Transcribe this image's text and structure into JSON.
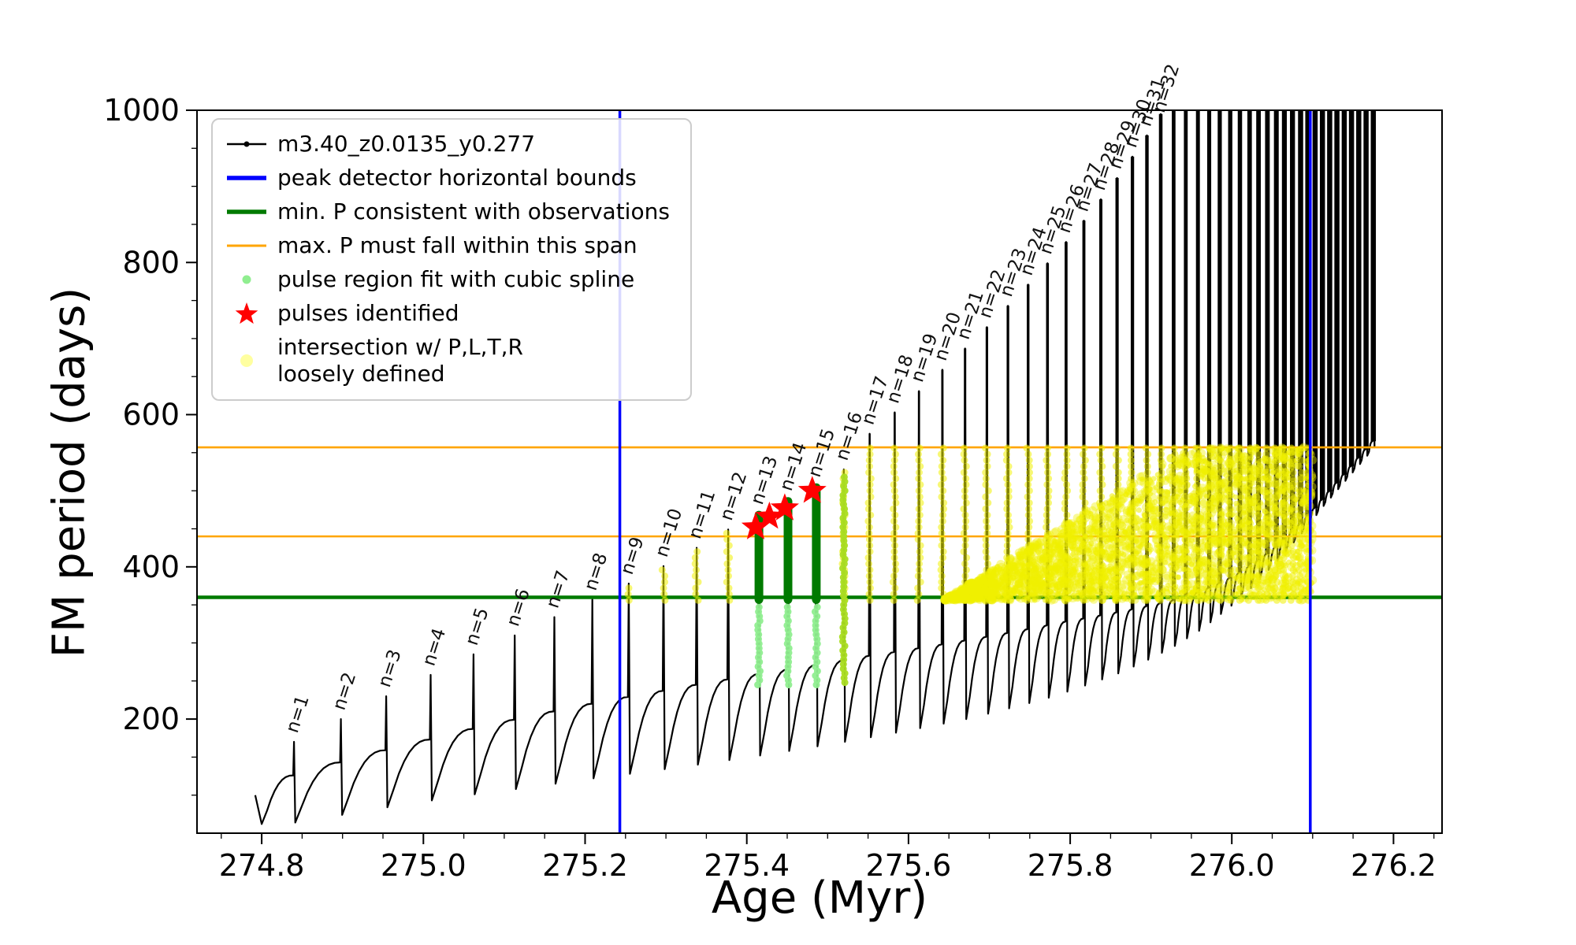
{
  "chart_data": {
    "type": "line",
    "title": "",
    "xlabel": "Age (Myr)",
    "ylabel": "FM period (days)",
    "xlim": [
      274.72,
      276.26
    ],
    "ylim": [
      50,
      1000
    ],
    "xticks": [
      274.8,
      275.0,
      275.2,
      275.4,
      275.6,
      275.8,
      276.0,
      276.2
    ],
    "yticks": [
      200,
      400,
      600,
      800,
      1000
    ],
    "series_name": "m3.40_z0.0135_y0.277",
    "pulse_label_prefix": "n=",
    "colors": {
      "series": "#000000",
      "bounds": "#0000ff",
      "min_p": "#007a00",
      "max_p": "#ffa500",
      "spline": "#90ee90",
      "pulses": "#ff0000",
      "intersection": "#f0f000",
      "greenyellow": "#aadd22"
    },
    "legend": [
      {
        "marker": "line-dot",
        "color": "#000000",
        "label": "m3.40_z0.0135_y0.277"
      },
      {
        "marker": "thick-line",
        "color": "#0000ff",
        "label": "peak detector horizontal bounds"
      },
      {
        "marker": "thick-line",
        "color": "#007a00",
        "label": "min. P consistent with observations"
      },
      {
        "marker": "line",
        "color": "#ffa500",
        "label": "max. P must fall within this span"
      },
      {
        "marker": "dot",
        "color": "#90ee90",
        "size": 5.5,
        "label": "pulse region fit with cubic spline"
      },
      {
        "marker": "star",
        "color": "#ff0000",
        "label": "pulses identified"
      },
      {
        "marker": "dot",
        "color": "#ffffa0",
        "size": 8,
        "label": "intersection w/ P,L,T,R\nloosely defined"
      }
    ],
    "vlines": [
      275.243,
      276.097
    ],
    "hlines": {
      "min_p": 360,
      "max_p": [
        440,
        557
      ]
    },
    "curve_start": [
      274.792,
      100,
      274.8,
      62
    ],
    "pulses": [
      [
        274.84,
        170,
        126,
        64,
        1
      ],
      [
        274.898,
        200,
        143,
        74,
        2
      ],
      [
        274.954,
        230,
        159,
        84,
        3
      ],
      [
        275.009,
        258,
        173,
        93,
        4
      ],
      [
        275.062,
        285,
        187,
        101,
        5
      ],
      [
        275.113,
        310,
        199,
        108,
        6
      ],
      [
        275.162,
        334,
        210,
        115,
        7
      ],
      [
        275.209,
        357,
        220,
        122,
        8
      ],
      [
        275.254,
        378,
        229,
        128,
        9
      ],
      [
        275.297,
        401,
        237,
        134,
        10
      ],
      [
        275.338,
        425,
        245,
        140,
        11
      ],
      [
        275.377,
        449,
        252,
        146,
        12
      ],
      [
        275.415,
        470,
        259,
        152,
        13
      ],
      [
        275.451,
        488,
        265,
        158,
        14
      ],
      [
        275.486,
        506,
        271,
        164,
        15
      ],
      [
        275.52,
        528,
        277,
        170,
        16
      ],
      [
        275.552,
        575,
        283,
        176,
        17
      ],
      [
        275.583,
        603,
        288,
        182,
        18
      ],
      [
        275.613,
        631,
        293,
        188,
        19
      ],
      [
        275.642,
        659,
        298,
        194,
        20
      ],
      [
        275.67,
        687,
        303,
        200,
        21
      ],
      [
        275.697,
        715,
        308,
        207,
        22
      ],
      [
        275.723,
        743,
        313,
        214,
        23
      ],
      [
        275.748,
        771,
        318,
        221,
        24
      ],
      [
        275.772,
        799,
        323,
        228,
        25
      ],
      [
        275.795,
        827,
        328,
        236,
        26
      ],
      [
        275.817,
        855,
        332,
        244,
        27
      ],
      [
        275.838,
        883,
        336,
        252,
        28
      ],
      [
        275.858,
        911,
        340,
        260,
        29
      ],
      [
        275.877,
        939,
        344,
        269,
        30
      ],
      [
        275.895,
        967,
        348,
        278,
        31
      ],
      [
        275.912,
        995,
        352,
        287,
        32
      ],
      [
        275.928,
        1100,
        356,
        296,
        0
      ],
      [
        275.943,
        1100,
        361,
        306,
        0
      ],
      [
        275.958,
        1100,
        366,
        316,
        0
      ],
      [
        275.972,
        1100,
        372,
        327,
        0
      ],
      [
        275.985,
        1100,
        378,
        338,
        0
      ],
      [
        275.998,
        1100,
        385,
        349,
        0
      ],
      [
        276.01,
        1100,
        392,
        360,
        0
      ],
      [
        276.022,
        1100,
        400,
        372,
        0
      ],
      [
        276.033,
        1100,
        408,
        384,
        0
      ],
      [
        276.044,
        1100,
        417,
        396,
        0
      ],
      [
        276.055,
        1100,
        426,
        408,
        0
      ],
      [
        276.065,
        1100,
        436,
        420,
        0
      ],
      [
        276.075,
        1100,
        446,
        432,
        0
      ],
      [
        276.085,
        1100,
        456,
        444,
        0
      ],
      [
        276.094,
        1100,
        466,
        456,
        0
      ],
      [
        276.103,
        1100,
        477,
        468,
        0
      ],
      [
        276.112,
        1100,
        488,
        480,
        0
      ],
      [
        276.121,
        1100,
        499,
        491,
        0
      ],
      [
        276.13,
        1100,
        510,
        502,
        0
      ],
      [
        276.139,
        1100,
        521,
        513,
        0
      ],
      [
        276.148,
        1100,
        532,
        524,
        0
      ],
      [
        276.157,
        1100,
        543,
        535,
        0
      ],
      [
        276.166,
        1100,
        554,
        546,
        0
      ],
      [
        276.175,
        1100,
        565,
        557,
        0
      ]
    ],
    "green_bars": [
      {
        "age": 275.415,
        "y": [
          357,
          468
        ]
      },
      {
        "age": 275.451,
        "y": [
          357,
          486
        ]
      },
      {
        "age": 275.486,
        "y": [
          357,
          504
        ]
      }
    ],
    "spline_strips": [
      {
        "age": 275.415,
        "y": [
          245,
          350
        ]
      },
      {
        "age": 275.451,
        "y": [
          245,
          350
        ]
      },
      {
        "age": 275.486,
        "y": [
          245,
          350
        ]
      }
    ],
    "greenyellow_strip": {
      "age": 275.52,
      "y": [
        248,
        522
      ]
    },
    "stars": [
      [
        275.411,
        452
      ],
      [
        275.428,
        466
      ],
      [
        275.447,
        477
      ],
      [
        275.481,
        500
      ]
    ],
    "yellow": {
      "strip_x_range": [
        275.25,
        276.1
      ],
      "strip_y": [
        356,
        557
      ],
      "wedge_x": [
        275.645,
        276.1
      ],
      "base": 356,
      "tip": 358,
      "top": 557,
      "slope": 663,
      "slope_end_x": 275.945
    }
  }
}
